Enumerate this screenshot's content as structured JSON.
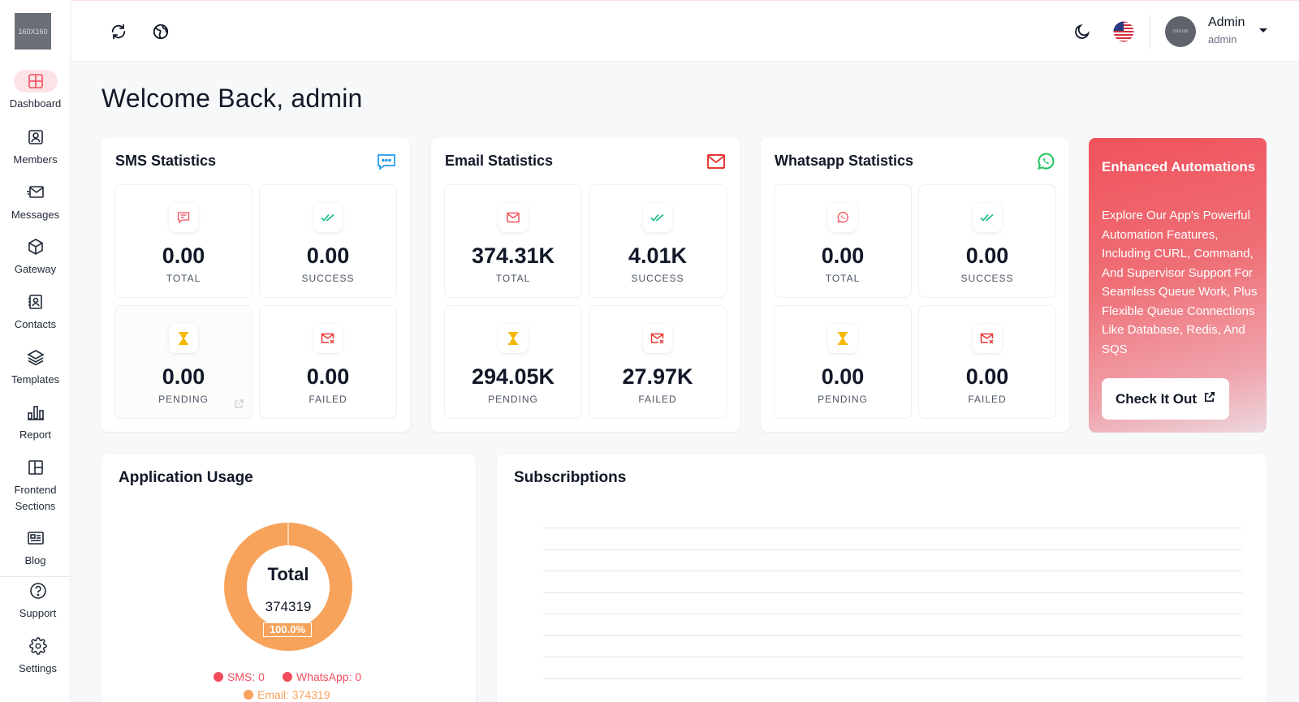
{
  "sidebar": {
    "logo_text": "160X160",
    "items": [
      {
        "label": "Dashboard",
        "icon": "grid-icon"
      },
      {
        "label": "Members",
        "icon": "user-square-icon"
      },
      {
        "label": "Messages",
        "icon": "envelope-send-icon"
      },
      {
        "label": "Gateway",
        "icon": "cube-icon"
      },
      {
        "label": "Contacts",
        "icon": "contact-book-icon"
      },
      {
        "label": "Templates",
        "icon": "layers-icon"
      },
      {
        "label": "Report",
        "icon": "bar-chart-icon"
      },
      {
        "label": "Frontend Sections",
        "icon": "layout-icon"
      },
      {
        "label": "Blog",
        "icon": "newspaper-icon"
      },
      {
        "label": "Support",
        "icon": "question-circle-icon"
      },
      {
        "label": "Settings",
        "icon": "gear-icon"
      }
    ]
  },
  "topbar": {
    "user_name": "Admin",
    "user_role": "admin",
    "avatar_text": "160x160"
  },
  "welcome": "Welcome Back, admin",
  "stats": {
    "sms": {
      "title": "SMS Statistics",
      "total": "0.00",
      "success": "0.00",
      "pending": "0.00",
      "failed": "0.00"
    },
    "email": {
      "title": "Email Statistics",
      "total": "374.31K",
      "success": "4.01K",
      "pending": "294.05K",
      "failed": "27.97K"
    },
    "whatsapp": {
      "title": "Whatsapp Statistics",
      "total": "0.00",
      "success": "0.00",
      "pending": "0.00",
      "failed": "0.00"
    },
    "labels": {
      "total": "TOTAL",
      "success": "SUCCESS",
      "pending": "PENDING",
      "failed": "FAILED"
    }
  },
  "promo": {
    "title": "Enhanced Automations",
    "text": "Explore Our App's Powerful Automation Features, Including CURL, Command, And Supervisor Support For Seamless Queue Work, Plus Flexible Queue Connections Like Database, Redis, And SQS",
    "button": "Check It Out"
  },
  "usage": {
    "title": "Application Usage",
    "center_label": "Total",
    "center_value": "374319",
    "percent_label": "100.0%",
    "legend": [
      {
        "text": "SMS: 0",
        "color": "#f24c5c"
      },
      {
        "text": "WhatsApp: 0",
        "color": "#f24c5c"
      },
      {
        "text": "Email: 374319",
        "color": "#f7a35c"
      }
    ]
  },
  "chart_data": {
    "type": "pie",
    "categories": [
      "SMS",
      "WhatsApp",
      "Email"
    ],
    "values": [
      0,
      0,
      374319
    ],
    "title": "Application Usage"
  },
  "subscriptions": {
    "title": "Subscribptions"
  },
  "colors": {
    "accent": "#f0525c",
    "email_orange": "#f7a35c",
    "success_green": "#10b981",
    "pending_yellow": "#f5b800",
    "info_blue": "#1d9bf0",
    "whatsapp_green": "#22c55e"
  }
}
